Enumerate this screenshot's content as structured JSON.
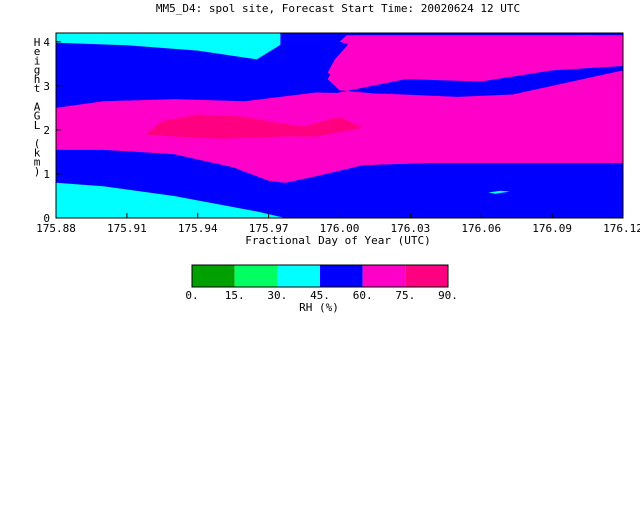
{
  "chart_data": {
    "type": "heatmap",
    "title": "MM5_D4: spol site,  Forecast Start Time: 20020624 12 UTC",
    "xlabel": "Fractional Day of Year (UTC)",
    "ylabel": "Height AGL (km)",
    "ylabel_chars": [
      "H",
      "e",
      "i",
      "g",
      "h",
      "t",
      "",
      "A",
      "G",
      "L",
      "",
      "(",
      "k",
      "m",
      ")"
    ],
    "xlim": [
      175.88,
      176.12
    ],
    "ylim": [
      0,
      4.2
    ],
    "x_tick_values": [
      175.88,
      175.91,
      175.94,
      175.97,
      176.0,
      176.03,
      176.06,
      176.09,
      176.12
    ],
    "x_tick_labels": [
      "175.88",
      "175.91",
      "175.94",
      "175.97",
      "176.00",
      "176.03",
      "176.06",
      "176.09",
      "176.12"
    ],
    "y_tick_values": [
      0,
      1,
      2,
      3,
      4
    ],
    "y_tick_labels": [
      "0",
      "1",
      "2",
      "3",
      "4"
    ],
    "colorbar": {
      "label": "RH (%)",
      "levels": [
        0,
        15,
        30,
        45,
        60,
        75,
        90
      ],
      "level_labels": [
        "0.",
        "15.",
        "30.",
        "45.",
        "60.",
        "75.",
        "90."
      ],
      "colors": [
        "#00a000",
        "#00ff60",
        "#00ffff",
        "#0000ff",
        "#ff00c8",
        "#ff0080"
      ]
    },
    "regions": [
      {
        "rh_class": "45-60",
        "color": "#0000ff",
        "points": [
          [
            175.88,
            0
          ],
          [
            176.12,
            0
          ],
          [
            176.12,
            4.2
          ],
          [
            175.88,
            4.2
          ]
        ]
      },
      {
        "rh_class": "30-45",
        "color": "#00ffff",
        "points": [
          [
            175.88,
            0
          ],
          [
            175.977,
            0
          ],
          [
            175.965,
            0.15
          ],
          [
            175.93,
            0.5
          ],
          [
            175.9,
            0.72
          ],
          [
            175.88,
            0.8
          ]
        ]
      },
      {
        "rh_class": "30-45",
        "color": "#00ffff",
        "points": [
          [
            175.88,
            3.98
          ],
          [
            175.88,
            4.2
          ],
          [
            176.0,
            4.2
          ],
          [
            175.975,
            4.2
          ],
          [
            175.975,
            3.93
          ],
          [
            175.965,
            3.6
          ],
          [
            175.94,
            3.8
          ],
          [
            175.91,
            3.92
          ]
        ]
      },
      {
        "rh_class": "30-45",
        "color": "#00ffff",
        "points": [
          [
            176.063,
            0.58
          ],
          [
            176.068,
            0.62
          ],
          [
            176.072,
            0.6
          ],
          [
            176.066,
            0.55
          ]
        ]
      },
      {
        "rh_class": "30-45",
        "color": "#00ffff",
        "points": [
          [
            176.1,
            4.15
          ],
          [
            176.104,
            4.13
          ],
          [
            176.108,
            4.15
          ]
        ]
      },
      {
        "rh_class": "60-75",
        "color": "#ff00c8",
        "points": [
          [
            175.88,
            1.55
          ],
          [
            175.9,
            1.55
          ],
          [
            175.93,
            1.45
          ],
          [
            175.955,
            1.15
          ],
          [
            175.97,
            0.85
          ],
          [
            175.977,
            0.8
          ],
          [
            175.99,
            0.95
          ],
          [
            176.01,
            1.2
          ],
          [
            176.04,
            1.25
          ],
          [
            176.07,
            1.25
          ],
          [
            176.1,
            1.25
          ],
          [
            176.12,
            1.25
          ],
          [
            176.12,
            3.35
          ],
          [
            176.09,
            3.38
          ],
          [
            176.06,
            3.45
          ],
          [
            176.04,
            3.55
          ],
          [
            176.02,
            3.7
          ],
          [
            176.0,
            4.0
          ],
          [
            176.003,
            4.15
          ],
          [
            176.12,
            4.15
          ],
          [
            176.12,
            3.35
          ],
          [
            176.12,
            1.25
          ],
          [
            176.12,
            3.35
          ],
          [
            176.06,
            2.65
          ],
          [
            176.03,
            2.75
          ],
          [
            176.0,
            2.9
          ],
          [
            175.995,
            3.15
          ],
          [
            175.997,
            3.35
          ],
          [
            176.01,
            3.6
          ],
          [
            176.03,
            3.55
          ],
          [
            176.06,
            3.45
          ],
          [
            176.09,
            3.38
          ],
          [
            176.12,
            3.35
          ],
          [
            176.12,
            4.15
          ],
          [
            176.12,
            4.15
          ]
        ]
      },
      {
        "rh_class": "60-75",
        "color": "#ff00c8",
        "points": [
          [
            175.88,
            1.55
          ],
          [
            175.9,
            1.55
          ],
          [
            175.93,
            1.45
          ],
          [
            175.955,
            1.15
          ],
          [
            175.97,
            0.85
          ],
          [
            175.977,
            0.8
          ],
          [
            175.99,
            0.95
          ],
          [
            176.01,
            1.2
          ],
          [
            176.04,
            1.25
          ],
          [
            176.12,
            1.25
          ],
          [
            176.12,
            2.95
          ],
          [
            176.08,
            2.82
          ],
          [
            176.05,
            2.75
          ],
          [
            176.02,
            2.82
          ],
          [
            175.99,
            2.85
          ],
          [
            175.96,
            2.65
          ],
          [
            175.93,
            2.7
          ],
          [
            175.9,
            2.65
          ],
          [
            175.88,
            2.5
          ]
        ]
      },
      {
        "rh_class": "60-75",
        "color": "#ff00c8",
        "points": [
          [
            175.995,
            3.3
          ],
          [
            175.998,
            3.6
          ],
          [
            176.003,
            3.9
          ],
          [
            176.006,
            4.15
          ],
          [
            176.12,
            4.15
          ],
          [
            176.12,
            3.45
          ],
          [
            176.09,
            3.35
          ],
          [
            176.06,
            3.1
          ],
          [
            176.03,
            3.15
          ],
          [
            176.0,
            3.1
          ]
        ]
      },
      {
        "rh_class": "75-90",
        "color": "#ff0080",
        "points": [
          [
            175.918,
            1.9
          ],
          [
            175.925,
            2.2
          ],
          [
            175.94,
            2.35
          ],
          [
            175.96,
            2.3
          ],
          [
            175.975,
            2.15
          ],
          [
            175.985,
            2.08
          ],
          [
            176.0,
            2.3
          ],
          [
            176.01,
            2.05
          ],
          [
            175.99,
            1.85
          ],
          [
            175.975,
            1.85
          ],
          [
            175.95,
            1.8
          ],
          [
            175.93,
            1.85
          ]
        ]
      }
    ]
  }
}
